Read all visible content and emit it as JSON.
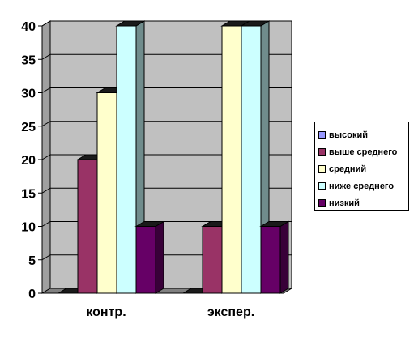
{
  "chart_data": {
    "type": "bar",
    "categories": [
      "контр.",
      "экспер."
    ],
    "series": [
      {
        "name": "высокий",
        "values": [
          0,
          0
        ],
        "color": "#9999ff"
      },
      {
        "name": "выше среднего",
        "values": [
          20,
          10
        ],
        "color": "#993366"
      },
      {
        "name": "средний",
        "values": [
          30,
          40
        ],
        "color": "#ffffcc"
      },
      {
        "name": "ниже среднего",
        "values": [
          40,
          40
        ],
        "color": "#ccffff"
      },
      {
        "name": "низкий",
        "values": [
          10,
          10
        ],
        "color": "#660066"
      }
    ],
    "yticks": [
      "0",
      "5",
      "10",
      "15",
      "20",
      "25",
      "30",
      "35",
      "40"
    ],
    "ylim": [
      0,
      40
    ],
    "grid": true,
    "legend_position": "right",
    "title": "",
    "xlabel": "",
    "ylabel": ""
  }
}
